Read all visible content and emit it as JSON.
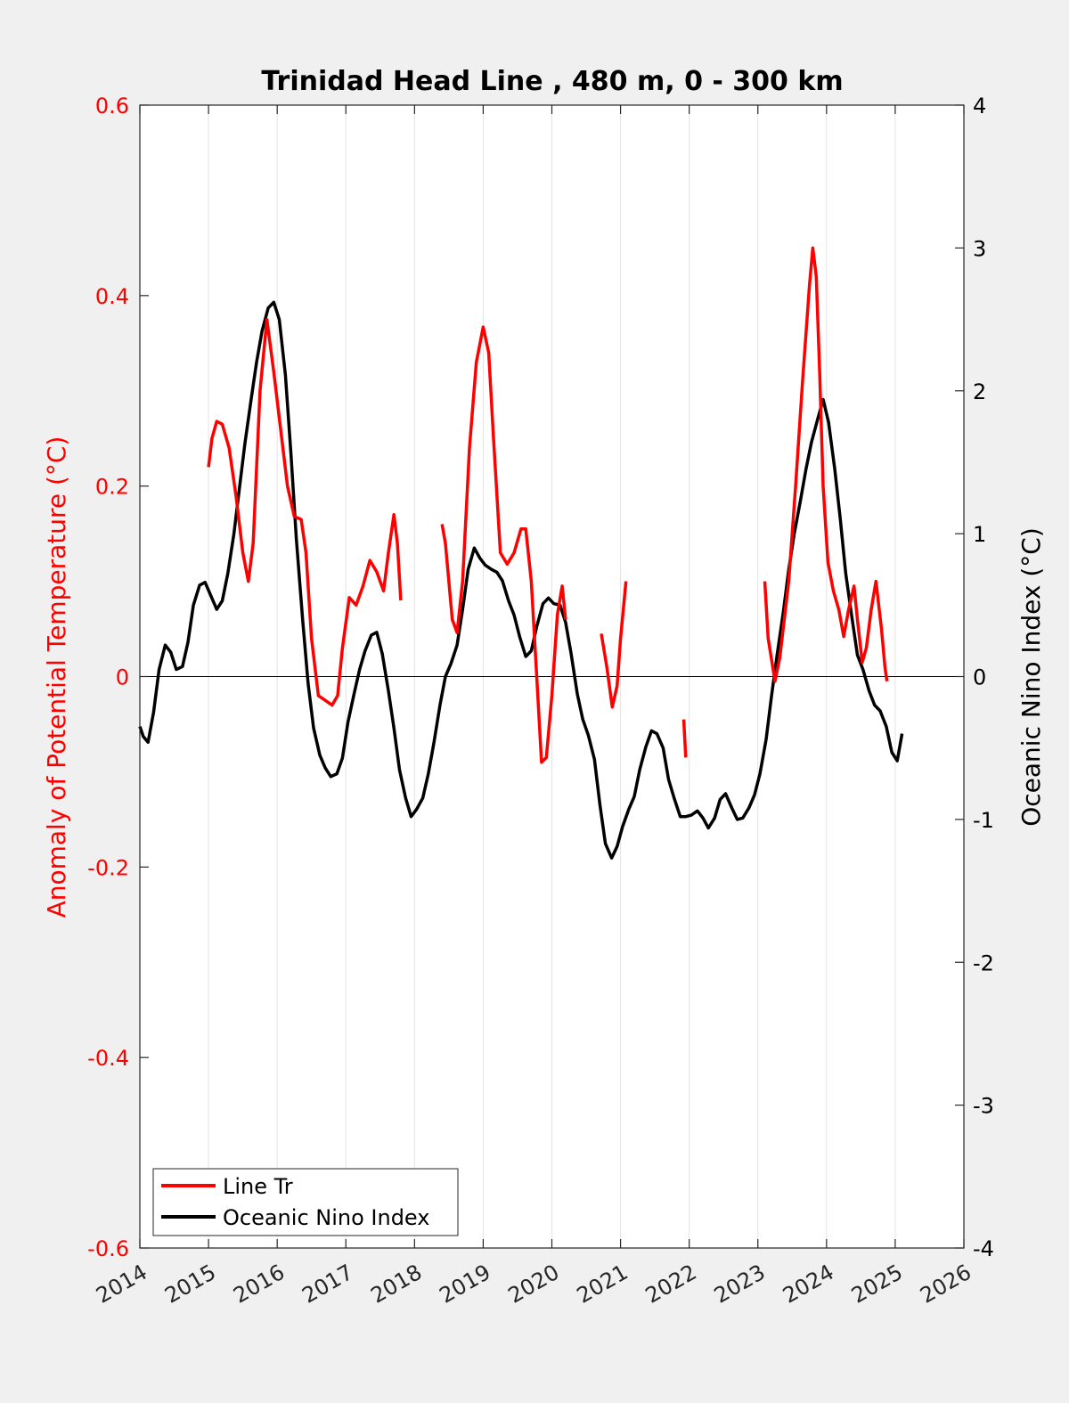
{
  "chart_data": {
    "type": "line",
    "title": "Trinidad Head Line , 480 m, 0 - 300 km",
    "xlabel": "",
    "xlim": [
      2014,
      2026
    ],
    "x_ticks": [
      "2014",
      "2015",
      "2016",
      "2017",
      "2018",
      "2019",
      "2020",
      "2021",
      "2022",
      "2023",
      "2024",
      "2025",
      "2026"
    ],
    "grid": "vertical",
    "legend_placement": "bottom-left",
    "left_axis": {
      "label": "Anomaly of Potential Temperature (°C)",
      "ylim": [
        -0.6,
        0.6
      ],
      "ticks": [
        "-0.6",
        "-0.4",
        "-0.2",
        "0",
        "0.2",
        "0.4",
        "0.6"
      ],
      "color": "#ff0000"
    },
    "right_axis": {
      "label": "Oceanic Nino Index (°C)",
      "ylim": [
        -4,
        4
      ],
      "ticks": [
        "-4",
        "-3",
        "-2",
        "-1",
        "0",
        "1",
        "2",
        "3",
        "4"
      ],
      "color": "#000000"
    },
    "series": [
      {
        "name": "Line Tr",
        "axis": "left",
        "color": "#ff0000",
        "segments": [
          [
            [
              2015.0,
              0.22
            ],
            [
              2015.05,
              0.25
            ],
            [
              2015.12,
              0.268
            ],
            [
              2015.2,
              0.265
            ],
            [
              2015.3,
              0.24
            ],
            [
              2015.4,
              0.19
            ],
            [
              2015.5,
              0.13
            ],
            [
              2015.58,
              0.1
            ],
            [
              2015.65,
              0.14
            ],
            [
              2015.75,
              0.3
            ],
            [
              2015.85,
              0.375
            ],
            [
              2015.95,
              0.32
            ],
            [
              2016.05,
              0.26
            ],
            [
              2016.15,
              0.2
            ],
            [
              2016.25,
              0.168
            ],
            [
              2016.35,
              0.165
            ],
            [
              2016.42,
              0.13
            ],
            [
              2016.5,
              0.04
            ],
            [
              2016.6,
              -0.02
            ],
            [
              2016.7,
              -0.025
            ],
            [
              2016.8,
              -0.03
            ],
            [
              2016.88,
              -0.02
            ],
            [
              2016.95,
              0.03
            ],
            [
              2017.05,
              0.083
            ],
            [
              2017.15,
              0.075
            ],
            [
              2017.25,
              0.095
            ],
            [
              2017.35,
              0.122
            ],
            [
              2017.45,
              0.11
            ],
            [
              2017.55,
              0.09
            ],
            [
              2017.62,
              0.13
            ],
            [
              2017.7,
              0.17
            ],
            [
              2017.75,
              0.14
            ],
            [
              2017.8,
              0.08
            ]
          ],
          [
            [
              2018.4,
              0.16
            ],
            [
              2018.45,
              0.14
            ],
            [
              2018.55,
              0.06
            ],
            [
              2018.62,
              0.046
            ],
            [
              2018.7,
              0.1
            ],
            [
              2018.8,
              0.24
            ],
            [
              2018.9,
              0.33
            ],
            [
              2019.0,
              0.367
            ],
            [
              2019.08,
              0.34
            ],
            [
              2019.15,
              0.25
            ],
            [
              2019.25,
              0.13
            ],
            [
              2019.35,
              0.118
            ],
            [
              2019.45,
              0.13
            ],
            [
              2019.55,
              0.155
            ],
            [
              2019.62,
              0.155
            ],
            [
              2019.7,
              0.1
            ],
            [
              2019.78,
              0.0
            ],
            [
              2019.85,
              -0.09
            ],
            [
              2019.92,
              -0.085
            ],
            [
              2020.0,
              -0.02
            ],
            [
              2020.08,
              0.065
            ],
            [
              2020.15,
              0.095
            ],
            [
              2020.2,
              0.06
            ]
          ],
          [
            [
              2020.72,
              0.045
            ],
            [
              2020.8,
              0.01
            ],
            [
              2020.88,
              -0.032
            ],
            [
              2020.95,
              -0.01
            ],
            [
              2021.0,
              0.04
            ],
            [
              2021.08,
              0.1
            ]
          ],
          [
            [
              2021.92,
              -0.045
            ],
            [
              2021.95,
              -0.085
            ]
          ],
          [
            [
              2023.1,
              0.1
            ],
            [
              2023.15,
              0.04
            ],
            [
              2023.25,
              -0.005
            ],
            [
              2023.32,
              0.02
            ],
            [
              2023.45,
              0.1
            ],
            [
              2023.55,
              0.2
            ],
            [
              2023.65,
              0.31
            ],
            [
              2023.75,
              0.41
            ],
            [
              2023.8,
              0.45
            ],
            [
              2023.85,
              0.42
            ],
            [
              2023.9,
              0.32
            ],
            [
              2023.95,
              0.2
            ],
            [
              2024.02,
              0.12
            ],
            [
              2024.1,
              0.09
            ],
            [
              2024.18,
              0.07
            ],
            [
              2024.25,
              0.042
            ],
            [
              2024.32,
              0.07
            ],
            [
              2024.4,
              0.095
            ],
            [
              2024.45,
              0.06
            ],
            [
              2024.52,
              0.015
            ],
            [
              2024.58,
              0.03
            ],
            [
              2024.65,
              0.07
            ],
            [
              2024.72,
              0.1
            ],
            [
              2024.8,
              0.05
            ],
            [
              2024.85,
              0.01
            ],
            [
              2024.88,
              -0.005
            ]
          ]
        ]
      },
      {
        "name": "Oceanic Nino Index",
        "axis": "right",
        "color": "#000000",
        "segments": [
          [
            [
              2014.0,
              -0.35
            ],
            [
              2014.05,
              -0.42
            ],
            [
              2014.12,
              -0.46
            ],
            [
              2014.2,
              -0.25
            ],
            [
              2014.28,
              0.05
            ],
            [
              2014.37,
              0.22
            ],
            [
              2014.45,
              0.17
            ],
            [
              2014.53,
              0.05
            ],
            [
              2014.62,
              0.07
            ],
            [
              2014.7,
              0.24
            ],
            [
              2014.78,
              0.5
            ],
            [
              2014.87,
              0.64
            ],
            [
              2014.95,
              0.66
            ],
            [
              2015.03,
              0.57
            ],
            [
              2015.12,
              0.47
            ],
            [
              2015.2,
              0.53
            ],
            [
              2015.28,
              0.72
            ],
            [
              2015.37,
              1.0
            ],
            [
              2015.45,
              1.32
            ],
            [
              2015.53,
              1.63
            ],
            [
              2015.62,
              1.94
            ],
            [
              2015.7,
              2.2
            ],
            [
              2015.78,
              2.42
            ],
            [
              2015.87,
              2.58
            ],
            [
              2015.95,
              2.62
            ],
            [
              2016.03,
              2.5
            ],
            [
              2016.12,
              2.11
            ],
            [
              2016.2,
              1.56
            ],
            [
              2016.28,
              0.96
            ],
            [
              2016.37,
              0.4
            ],
            [
              2016.45,
              -0.05
            ],
            [
              2016.53,
              -0.36
            ],
            [
              2016.62,
              -0.55
            ],
            [
              2016.7,
              -0.64
            ],
            [
              2016.78,
              -0.7
            ],
            [
              2016.87,
              -0.68
            ],
            [
              2016.95,
              -0.57
            ],
            [
              2017.03,
              -0.32
            ],
            [
              2017.12,
              -0.12
            ],
            [
              2017.2,
              0.05
            ],
            [
              2017.28,
              0.18
            ],
            [
              2017.37,
              0.29
            ],
            [
              2017.45,
              0.31
            ],
            [
              2017.53,
              0.16
            ],
            [
              2017.62,
              -0.1
            ],
            [
              2017.7,
              -0.36
            ],
            [
              2017.78,
              -0.65
            ],
            [
              2017.87,
              -0.85
            ],
            [
              2017.95,
              -0.98
            ],
            [
              2018.03,
              -0.93
            ],
            [
              2018.12,
              -0.85
            ],
            [
              2018.2,
              -0.68
            ],
            [
              2018.28,
              -0.47
            ],
            [
              2018.37,
              -0.2
            ],
            [
              2018.45,
              0.0
            ],
            [
              2018.53,
              0.09
            ],
            [
              2018.62,
              0.22
            ],
            [
              2018.7,
              0.47
            ],
            [
              2018.78,
              0.75
            ],
            [
              2018.87,
              0.9
            ],
            [
              2018.95,
              0.83
            ],
            [
              2019.03,
              0.78
            ],
            [
              2019.12,
              0.75
            ],
            [
              2019.2,
              0.73
            ],
            [
              2019.28,
              0.67
            ],
            [
              2019.37,
              0.53
            ],
            [
              2019.45,
              0.43
            ],
            [
              2019.53,
              0.28
            ],
            [
              2019.62,
              0.14
            ],
            [
              2019.7,
              0.18
            ],
            [
              2019.78,
              0.35
            ],
            [
              2019.87,
              0.51
            ],
            [
              2019.95,
              0.55
            ],
            [
              2020.03,
              0.51
            ],
            [
              2020.12,
              0.5
            ],
            [
              2020.2,
              0.38
            ],
            [
              2020.28,
              0.16
            ],
            [
              2020.37,
              -0.12
            ],
            [
              2020.45,
              -0.3
            ],
            [
              2020.53,
              -0.41
            ],
            [
              2020.62,
              -0.58
            ],
            [
              2020.7,
              -0.9
            ],
            [
              2020.78,
              -1.17
            ],
            [
              2020.87,
              -1.27
            ],
            [
              2020.95,
              -1.19
            ],
            [
              2021.03,
              -1.05
            ],
            [
              2021.12,
              -0.93
            ],
            [
              2021.2,
              -0.84
            ],
            [
              2021.28,
              -0.65
            ],
            [
              2021.37,
              -0.49
            ],
            [
              2021.45,
              -0.38
            ],
            [
              2021.53,
              -0.4
            ],
            [
              2021.62,
              -0.5
            ],
            [
              2021.7,
              -0.72
            ],
            [
              2021.78,
              -0.85
            ],
            [
              2021.87,
              -0.98
            ],
            [
              2021.95,
              -0.98
            ],
            [
              2022.03,
              -0.97
            ],
            [
              2022.12,
              -0.94
            ],
            [
              2022.2,
              -0.99
            ],
            [
              2022.28,
              -1.06
            ],
            [
              2022.37,
              -0.99
            ],
            [
              2022.45,
              -0.86
            ],
            [
              2022.53,
              -0.82
            ],
            [
              2022.62,
              -0.92
            ],
            [
              2022.7,
              -1.0
            ],
            [
              2022.78,
              -0.99
            ],
            [
              2022.87,
              -0.92
            ],
            [
              2022.95,
              -0.83
            ],
            [
              2023.03,
              -0.68
            ],
            [
              2023.12,
              -0.44
            ],
            [
              2023.2,
              -0.13
            ],
            [
              2023.28,
              0.15
            ],
            [
              2023.37,
              0.45
            ],
            [
              2023.45,
              0.75
            ],
            [
              2023.53,
              1.0
            ],
            [
              2023.62,
              1.23
            ],
            [
              2023.7,
              1.45
            ],
            [
              2023.78,
              1.64
            ],
            [
              2023.87,
              1.8
            ],
            [
              2023.95,
              1.94
            ],
            [
              2024.03,
              1.78
            ],
            [
              2024.12,
              1.45
            ],
            [
              2024.2,
              1.1
            ],
            [
              2024.28,
              0.72
            ],
            [
              2024.37,
              0.41
            ],
            [
              2024.45,
              0.15
            ],
            [
              2024.53,
              0.05
            ],
            [
              2024.62,
              -0.1
            ],
            [
              2024.7,
              -0.2
            ],
            [
              2024.78,
              -0.24
            ],
            [
              2024.87,
              -0.35
            ],
            [
              2024.95,
              -0.53
            ],
            [
              2025.03,
              -0.59
            ],
            [
              2025.1,
              -0.4
            ]
          ]
        ]
      }
    ]
  },
  "legend": {
    "items": [
      {
        "label": "Line Tr",
        "color": "#ff0000"
      },
      {
        "label": "Oceanic Nino Index",
        "color": "#000000"
      }
    ]
  }
}
